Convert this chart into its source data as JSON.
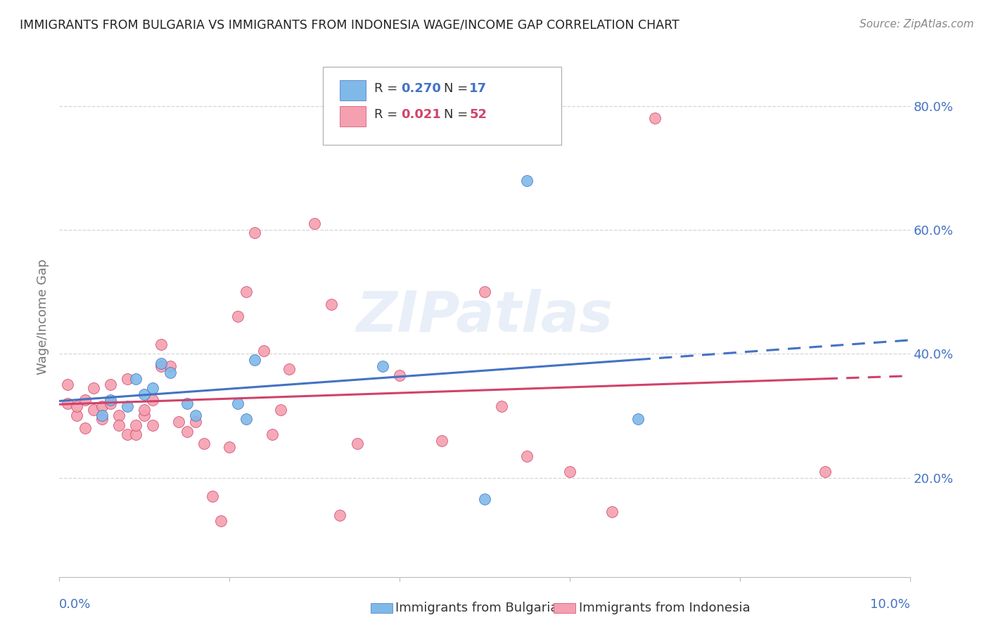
{
  "title": "IMMIGRANTS FROM BULGARIA VS IMMIGRANTS FROM INDONESIA WAGE/INCOME GAP CORRELATION CHART",
  "source": "Source: ZipAtlas.com",
  "ylabel": "Wage/Income Gap",
  "xlim": [
    0.0,
    0.1
  ],
  "ylim": [
    0.04,
    0.88
  ],
  "bulgaria_color": "#7EB9E8",
  "indonesia_color": "#F4A0B0",
  "bulgaria_R": "0.270",
  "bulgaria_N": "17",
  "indonesia_R": "0.021",
  "indonesia_N": "52",
  "legend_label_bulgaria": "Immigrants from Bulgaria",
  "legend_label_indonesia": "Immigrants from Indonesia",
  "bg_color": "#FFFFFF",
  "grid_color": "#CCCCCC",
  "axis_label_color": "#4472C4",
  "title_color": "#222222",
  "blue_line_color": "#4472C4",
  "pink_line_color": "#D0436A",
  "watermark": "ZIPatlas",
  "bulgaria_x": [
    0.005,
    0.006,
    0.008,
    0.009,
    0.01,
    0.011,
    0.012,
    0.013,
    0.015,
    0.016,
    0.021,
    0.022,
    0.023,
    0.038,
    0.05,
    0.055,
    0.068
  ],
  "bulgaria_y": [
    0.3,
    0.325,
    0.315,
    0.36,
    0.335,
    0.345,
    0.385,
    0.37,
    0.32,
    0.3,
    0.32,
    0.295,
    0.39,
    0.38,
    0.165,
    0.68,
    0.295
  ],
  "indonesia_x": [
    0.001,
    0.001,
    0.002,
    0.002,
    0.003,
    0.003,
    0.004,
    0.004,
    0.005,
    0.005,
    0.006,
    0.006,
    0.007,
    0.007,
    0.008,
    0.008,
    0.009,
    0.009,
    0.01,
    0.01,
    0.011,
    0.011,
    0.012,
    0.012,
    0.013,
    0.014,
    0.015,
    0.016,
    0.017,
    0.018,
    0.019,
    0.02,
    0.021,
    0.022,
    0.023,
    0.024,
    0.025,
    0.026,
    0.027,
    0.03,
    0.032,
    0.033,
    0.035,
    0.04,
    0.045,
    0.05,
    0.052,
    0.055,
    0.06,
    0.065,
    0.07,
    0.09
  ],
  "indonesia_y": [
    0.32,
    0.35,
    0.3,
    0.315,
    0.28,
    0.325,
    0.31,
    0.345,
    0.315,
    0.295,
    0.32,
    0.35,
    0.3,
    0.285,
    0.27,
    0.36,
    0.27,
    0.285,
    0.3,
    0.31,
    0.325,
    0.285,
    0.38,
    0.415,
    0.38,
    0.29,
    0.275,
    0.29,
    0.255,
    0.17,
    0.13,
    0.25,
    0.46,
    0.5,
    0.595,
    0.405,
    0.27,
    0.31,
    0.375,
    0.61,
    0.48,
    0.14,
    0.255,
    0.365,
    0.26,
    0.5,
    0.315,
    0.235,
    0.21,
    0.145,
    0.78,
    0.21
  ]
}
